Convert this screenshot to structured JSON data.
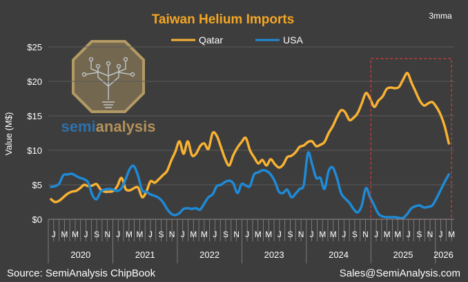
{
  "colors": {
    "background": "#3d3d3d",
    "title": "#f5a623",
    "qatar": "#f9b233",
    "usa": "#1f8ad6",
    "text": "#ffffff",
    "gridline": "#5a5a5a",
    "highlight": "#e03b3b"
  },
  "logo": {
    "text_a": "semi",
    "text_b": "analysis",
    "icon": "chip-tree-icon"
  },
  "chart_data": {
    "type": "line",
    "title": "Taiwan Helium Imports",
    "note": "3mma",
    "ylabel": "Value (M$)",
    "ylim": [
      0,
      25
    ],
    "y_ticks": [
      "$0",
      "$5",
      "$10",
      "$15",
      "$20",
      "$25"
    ],
    "y_tick_values": [
      0,
      5,
      10,
      15,
      20,
      25
    ],
    "month_labels": [
      "J",
      "M",
      "M",
      "J",
      "S",
      "N",
      "J",
      "M",
      "M",
      "J",
      "S",
      "N",
      "J",
      "M",
      "M",
      "J",
      "S",
      "N",
      "J",
      "M",
      "M",
      "J",
      "S",
      "N",
      "J",
      "M",
      "M",
      "J",
      "S",
      "N",
      "J",
      "M",
      "M",
      "J",
      "S",
      "N",
      "J",
      "M"
    ],
    "years": [
      "2020",
      "2021",
      "2022",
      "2023",
      "2024",
      "2025",
      "2026"
    ],
    "x_start": "2020-01",
    "x_end": "2026-03",
    "legend": [
      "Qatar",
      "USA"
    ],
    "legend_position": "top",
    "series": [
      {
        "name": "Qatar",
        "values": [
          2.9,
          2.5,
          2.7,
          3.2,
          3.7,
          4.0,
          4.1,
          4.5,
          5.0,
          4.8,
          4.9,
          5.1,
          4.3,
          4.0,
          4.0,
          4.1,
          4.8,
          6.0,
          4.4,
          4.2,
          4.5,
          4.6,
          3.2,
          4.0,
          5.5,
          5.3,
          5.8,
          6.4,
          7.0,
          8.5,
          9.8,
          11.3,
          9.5,
          11.3,
          9.3,
          9.5,
          10.6,
          11.0,
          10.2,
          12.5,
          12.1,
          10.5,
          8.8,
          7.8,
          9.3,
          10.4,
          11.2,
          11.8,
          10.0,
          9.0,
          8.1,
          8.6,
          7.8,
          8.7,
          8.0,
          7.5,
          7.9,
          9.0,
          9.2,
          9.7,
          10.5,
          10.7,
          11.2,
          11.3,
          10.6,
          10.8,
          11.2,
          12.5,
          13.5,
          14.8,
          15.8,
          15.5,
          14.4,
          14.7,
          15.4,
          16.8,
          18.3,
          17.5,
          16.3,
          17.2,
          17.8,
          18.9,
          19.1,
          19.0,
          19.2,
          20.3,
          21.2,
          19.8,
          18.5,
          17.2,
          16.5,
          16.8,
          17.0,
          16.3,
          15.2,
          13.5,
          11.0
        ]
      },
      {
        "name": "USA",
        "values": [
          4.7,
          4.8,
          5.2,
          6.4,
          6.5,
          6.6,
          6.3,
          6.0,
          5.8,
          5.3,
          3.5,
          2.9,
          4.0,
          4.3,
          4.4,
          4.3,
          4.1,
          4.5,
          5.8,
          7.3,
          7.7,
          6.3,
          4.2,
          4.0,
          3.6,
          3.4,
          3.1,
          2.5,
          1.5,
          0.8,
          0.6,
          0.9,
          1.5,
          1.6,
          1.5,
          1.6,
          1.4,
          2.3,
          3.2,
          3.6,
          4.8,
          5.0,
          5.4,
          5.6,
          5.2,
          3.8,
          5.1,
          4.9,
          4.8,
          6.5,
          6.8,
          7.1,
          7.0,
          6.5,
          5.5,
          4.0,
          3.8,
          4.3,
          3.2,
          3.7,
          4.4,
          5.0,
          9.6,
          8.0,
          6.0,
          6.0,
          4.4,
          7.0,
          7.5,
          6.0,
          3.8,
          3.0,
          2.4,
          1.5,
          1.0,
          2.0,
          4.5,
          3.2,
          2.0,
          0.8,
          0.4,
          0.3,
          0.3,
          0.3,
          0.2,
          0.2,
          0.8,
          1.6,
          1.9,
          2.0,
          1.7,
          1.8,
          2.0,
          3.0,
          4.2,
          5.4,
          6.5
        ]
      }
    ],
    "highlight_box": {
      "from": "2025-01",
      "to": "2026-03"
    },
    "source": "Source: SemiAnalysis ChipBook",
    "contact": "Sales@SemiAnalysis.com"
  }
}
